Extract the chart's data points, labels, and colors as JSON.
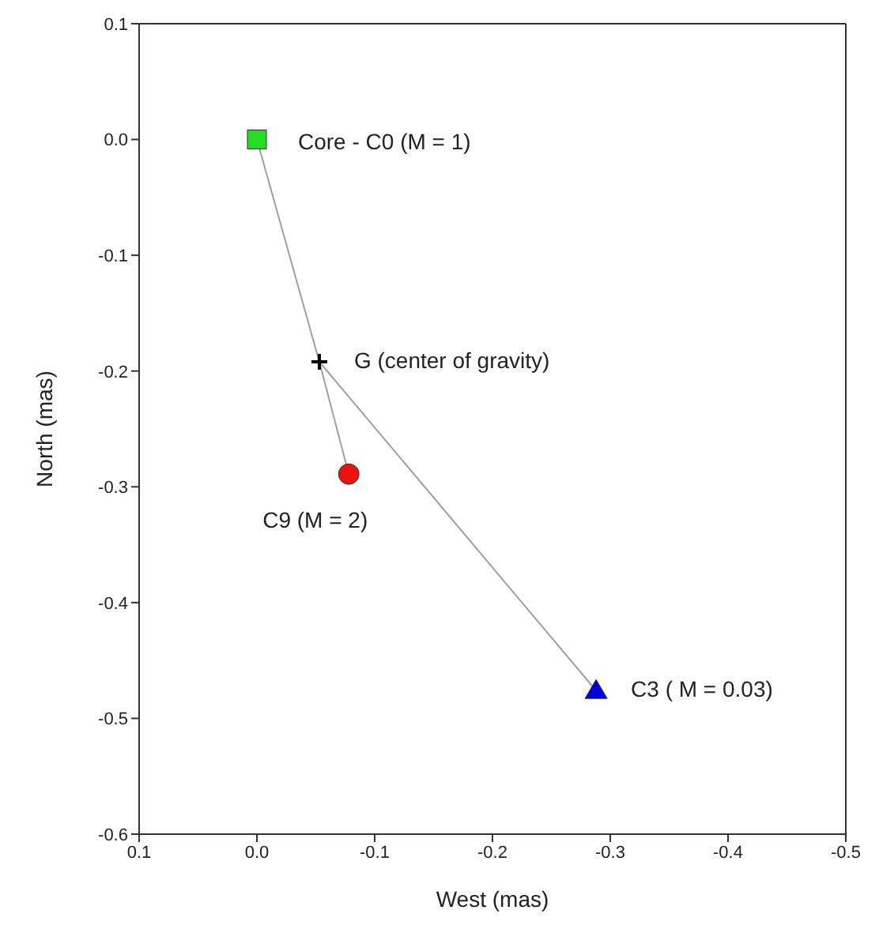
{
  "chart_data": {
    "type": "scatter",
    "xlabel": "West (mas)",
    "ylabel": "North (mas)",
    "xlim": [
      0.1,
      -0.5
    ],
    "ylim": [
      -0.6,
      0.1
    ],
    "xticks": [
      0.1,
      {
        "value": 0,
        "label": "0.0"
      },
      -0.1,
      -0.2,
      -0.3,
      -0.4,
      -0.5
    ],
    "yticks": [
      -0.6,
      -0.5,
      -0.4,
      -0.3,
      -0.2,
      -0.1,
      {
        "value": 0,
        "label": "0.0"
      },
      0.1
    ],
    "series": [
      {
        "type": "line",
        "color": "#a0a0a0",
        "x": [
          0,
          -0.053,
          -0.078
        ],
        "values": [
          0,
          -0.192,
          -0.289
        ],
        "marker": "none"
      },
      {
        "type": "line",
        "color": "#a0a0a0",
        "x": [
          -0.053,
          -0.288
        ],
        "values": [
          -0.192,
          -0.476
        ],
        "marker": "none"
      },
      {
        "color": "#22dd22",
        "x": [
          0
        ],
        "values": [
          0
        ],
        "marker": "square"
      },
      {
        "color": "#000000",
        "x": [
          -0.053
        ],
        "values": [
          -0.192
        ],
        "marker": "cross"
      },
      {
        "color": "#ee1111",
        "x": [
          -0.078
        ],
        "values": [
          -0.289
        ],
        "marker": "circle"
      },
      {
        "color": "#0000dd",
        "x": [
          -0.288
        ],
        "values": [
          -0.476
        ],
        "marker": "triangle"
      }
    ],
    "annotations": [
      {
        "text": "Core - C0 (M = 1)",
        "x": 0,
        "y": 0
      },
      {
        "text": "G (center of gravity)",
        "x": -0.053,
        "y": -0.192
      },
      {
        "text": "C9 (M = 2)",
        "x": -0.078,
        "y": -0.289
      },
      {
        "text": "C3 ( M = 0.03)",
        "x": -0.288,
        "y": -0.476
      }
    ]
  }
}
